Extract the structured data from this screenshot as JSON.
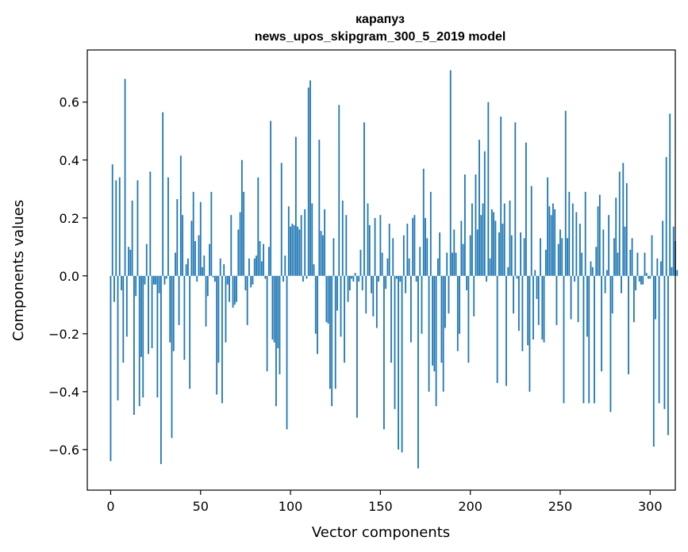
{
  "chart_data": {
    "type": "bar",
    "title": "карапуз",
    "subtitle": "news_upos_skipgram_300_5_2019 model",
    "xlabel": "Vector components",
    "ylabel": "Components values",
    "xlim": [
      -13,
      314
    ],
    "ylim": [
      -0.74,
      0.78
    ],
    "xticks": [
      0,
      50,
      100,
      150,
      200,
      250,
      300
    ],
    "yticks": [
      -0.6,
      -0.4,
      -0.2,
      0.0,
      0.2,
      0.4,
      0.6
    ],
    "ytick_labels": [
      "−0.6",
      "−0.4",
      "−0.2",
      "0.0",
      "0.2",
      "0.4",
      "0.6"
    ],
    "bar_color": "#1f77b4",
    "values": [
      -0.64,
      0.385,
      -0.09,
      0.33,
      -0.43,
      0.34,
      -0.05,
      -0.3,
      0.68,
      -0.21,
      0.1,
      0.09,
      0.26,
      -0.48,
      -0.07,
      0.33,
      -0.45,
      -0.28,
      -0.42,
      -0.03,
      0.11,
      -0.27,
      0.36,
      -0.25,
      -0.03,
      -0.03,
      -0.42,
      -0.06,
      -0.65,
      0.565,
      -0.03,
      -0.01,
      0.34,
      -0.23,
      -0.56,
      -0.26,
      0.08,
      0.265,
      -0.17,
      0.415,
      0.21,
      -0.29,
      0.04,
      0.06,
      -0.39,
      0.19,
      0.29,
      0.12,
      -0.02,
      0.14,
      0.255,
      0.03,
      0.07,
      -0.175,
      -0.07,
      0.11,
      0.29,
      -0.005,
      -0.02,
      -0.41,
      -0.3,
      0.06,
      -0.44,
      0.04,
      -0.23,
      -0.03,
      -0.09,
      0.21,
      -0.11,
      -0.1,
      -0.09,
      0.16,
      0.22,
      0.4,
      0.29,
      -0.05,
      -0.17,
      0.06,
      -0.04,
      -0.03,
      0.06,
      0.07,
      0.34,
      0.12,
      0.05,
      0.11,
      -0.01,
      -0.33,
      0.1,
      0.535,
      -0.22,
      -0.23,
      -0.45,
      -0.25,
      -0.34,
      0.39,
      -0.02,
      0.07,
      -0.53,
      0.24,
      0.17,
      0.18,
      0.175,
      0.48,
      0.17,
      0.16,
      0.21,
      -0.02,
      0.23,
      -0.01,
      0.65,
      0.675,
      0.25,
      0.04,
      -0.2,
      -0.27,
      0.47,
      0.155,
      0.14,
      0.23,
      -0.16,
      -0.165,
      -0.39,
      -0.45,
      0.13,
      -0.39,
      -0.12,
      0.59,
      -0.21,
      0.26,
      -0.3,
      0.21,
      -0.09,
      -0.05,
      -0.01,
      -0.02,
      0.01,
      -0.49,
      -0.02,
      0.09,
      -0.05,
      0.53,
      -0.13,
      0.25,
      0.175,
      -0.06,
      -0.14,
      0.2,
      -0.18,
      -0.02,
      0.21,
      0.08,
      -0.53,
      -0.045,
      0.06,
      0.18,
      -0.3,
      0.13,
      -0.46,
      -0.01,
      -0.6,
      -0.02,
      -0.61,
      0.14,
      -0.06,
      0.18,
      0.06,
      -0.23,
      0.2,
      0.21,
      -0.02,
      -0.665,
      0.1,
      -0.2,
      0.37,
      0.2,
      0.13,
      -0.4,
      0.29,
      -0.31,
      -0.33,
      -0.45,
      0.06,
      0.15,
      -0.3,
      -0.4,
      -0.18,
      0.08,
      -0.13,
      0.71,
      0.08,
      0.16,
      0.08,
      -0.26,
      -0.2,
      0.19,
      0.11,
      0.35,
      -0.05,
      -0.3,
      0.14,
      0.25,
      -0.14,
      0.35,
      0.16,
      0.47,
      0.21,
      0.25,
      0.43,
      -0.02,
      0.6,
      0.06,
      0.23,
      0.22,
      0.19,
      -0.37,
      0.15,
      0.55,
      0.18,
      0.25,
      -0.38,
      0.03,
      0.26,
      0.14,
      -0.13,
      0.53,
      -0.01,
      -0.19,
      0.15,
      -0.26,
      0.13,
      0.46,
      -0.24,
      -0.4,
      0.31,
      -0.22,
      0.02,
      -0.08,
      -0.17,
      0.13,
      -0.22,
      -0.23,
      0.09,
      0.34,
      0.24,
      0.21,
      0.25,
      0.23,
      -0.17,
      0.11,
      0.16,
      0.13,
      -0.44,
      0.57,
      0.13,
      0.29,
      -0.15,
      0.25,
      -0.02,
      0.22,
      -0.16,
      0.18,
      0.08,
      -0.44,
      0.29,
      -0.21,
      -0.44,
      0.05,
      0.03,
      -0.44,
      0.1,
      0.24,
      0.28,
      -0.33,
      0.16,
      -0.06,
      0.02,
      0.21,
      -0.47,
      -0.13,
      0.13,
      0.27,
      0.08,
      0.36,
      -0.06,
      0.39,
      0.17,
      0.32,
      -0.34,
      0.09,
      0.13,
      -0.16,
      -0.05,
      0.08,
      -0.02,
      -0.03,
      -0.03,
      0.08,
      0.01,
      -0.01,
      -0.01,
      0.14,
      -0.59,
      -0.15,
      0.06,
      -0.44,
      0.05,
      0.19,
      -0.46,
      0.41,
      -0.55,
      0.56,
      0.03,
      0.17,
      0.12,
      0.02
    ]
  }
}
